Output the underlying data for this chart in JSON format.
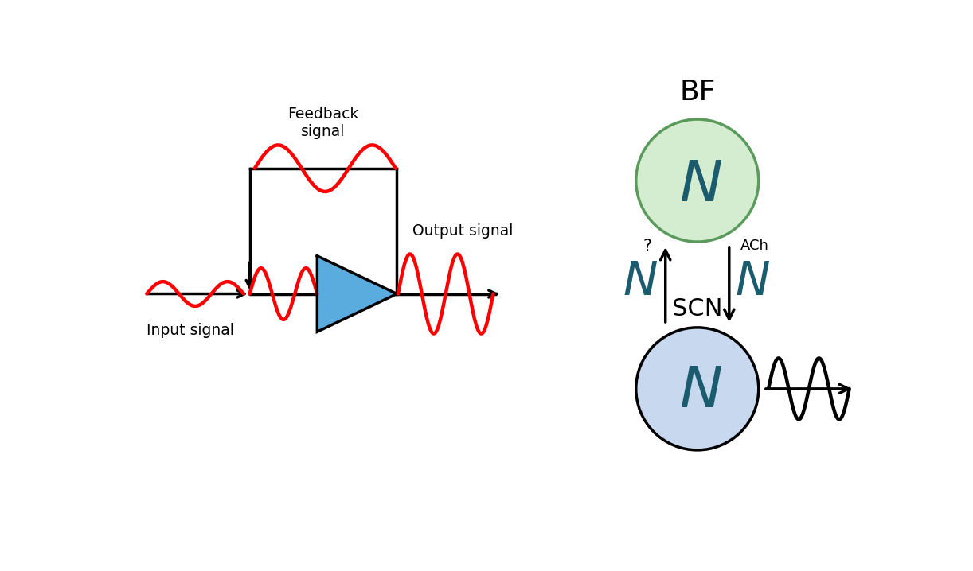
{
  "bg_color": "#ffffff",
  "fig_width": 12.22,
  "fig_height": 7.18,
  "dpi": 100,
  "signal_color": "#ff0000",
  "line_color": "#000000",
  "amplifier_color": "#5aacdf",
  "bf_circle_facecolor": "#d4ecd0",
  "bf_circle_edgecolor": "#5a9a5a",
  "scn_circle_facecolor": "#c8d8ef",
  "scn_circle_edgecolor": "#000000",
  "dark_teal": "#1a5c6e",
  "input_label": "Input signal",
  "feedback_label": "Feedback\nsignal",
  "output_label": "Output signal",
  "bf_label": "BF",
  "scn_label": "SCN",
  "ach_label": "ACh",
  "question_label": "?"
}
